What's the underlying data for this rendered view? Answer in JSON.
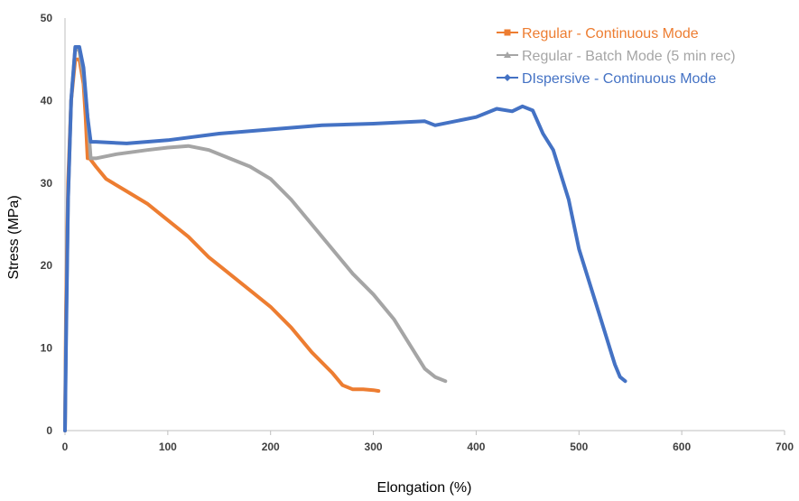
{
  "chart_data": {
    "type": "line",
    "title": "",
    "xlabel": "Elongation (%)",
    "ylabel": "Stress (MPa)",
    "xlim": [
      0,
      700
    ],
    "ylim": [
      0,
      50
    ],
    "xticks": [
      0,
      100,
      200,
      300,
      400,
      500,
      600,
      700
    ],
    "yticks": [
      0,
      10,
      20,
      30,
      40,
      50
    ],
    "grid": false,
    "legend_position": "top-right",
    "series": [
      {
        "name": "Regular - Continuous Mode",
        "color": "#ED7D31",
        "marker": "square",
        "x": [
          0,
          1,
          3,
          6,
          10,
          14,
          18,
          20,
          22,
          24,
          30,
          40,
          60,
          80,
          100,
          120,
          140,
          160,
          180,
          200,
          220,
          240,
          260,
          270,
          280,
          290,
          300,
          305
        ],
        "y": [
          0,
          15,
          30,
          40,
          45,
          45,
          42,
          38,
          33,
          33,
          32,
          30.5,
          29,
          27.5,
          25.5,
          23.5,
          21,
          19,
          17,
          15,
          12.5,
          9.5,
          7,
          5.5,
          5,
          5,
          4.9,
          4.8
        ]
      },
      {
        "name": "Regular - Batch Mode (5 min rec)",
        "color": "#A5A5A5",
        "marker": "triangle",
        "x": [
          0,
          1,
          3,
          6,
          10,
          14,
          18,
          22,
          25,
          30,
          50,
          80,
          100,
          120,
          140,
          160,
          180,
          200,
          220,
          240,
          260,
          280,
          300,
          320,
          340,
          350,
          360,
          370
        ],
        "y": [
          0,
          12,
          28,
          40,
          46.5,
          46,
          43,
          38,
          33,
          33,
          33.5,
          34,
          34.3,
          34.5,
          34,
          33,
          32,
          30.5,
          28,
          25,
          22,
          19,
          16.5,
          13.5,
          9.5,
          7.5,
          6.5,
          6
        ]
      },
      {
        "name": "DIspersive - Continuous Mode",
        "color": "#4472C4",
        "marker": "diamond",
        "x": [
          0,
          1,
          3,
          6,
          10,
          14,
          18,
          22,
          25,
          30,
          60,
          100,
          150,
          200,
          250,
          300,
          350,
          360,
          400,
          420,
          435,
          445,
          455,
          465,
          475,
          490,
          500,
          510,
          520,
          530,
          535,
          540,
          545
        ],
        "y": [
          0,
          10,
          28,
          40,
          46.5,
          46.5,
          44,
          38,
          35,
          35,
          34.8,
          35.2,
          36,
          36.5,
          37,
          37.2,
          37.5,
          37,
          38,
          39,
          38.7,
          39.3,
          38.8,
          36,
          34,
          28,
          22,
          18,
          14,
          10,
          8,
          6.5,
          6
        ]
      }
    ]
  }
}
